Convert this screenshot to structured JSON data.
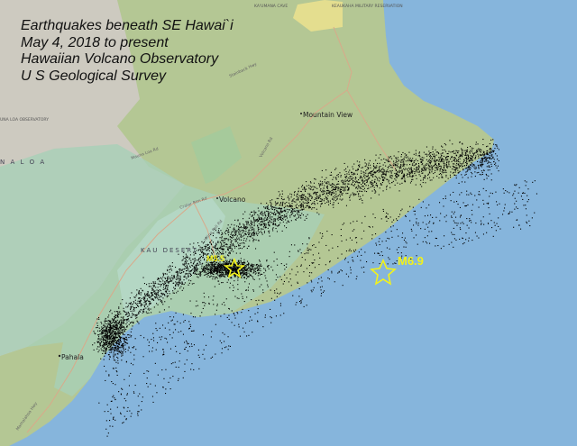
{
  "title_lines": [
    "Earthquakes beneath SE Hawai`i",
    "May 4, 2018 to present",
    "Hawaiian Volcano Observatory",
    "U S Geological Survey"
  ],
  "places": {
    "mountain_view": "Mountain View",
    "volcano": "Volcano",
    "pahala": "Pahala",
    "kau_desert": "KAU DESERT",
    "mauna_loa": "N A  L O A",
    "mauna_loa_observatory": "UNA LOA OBSERVATORY",
    "kaumana_cave": "KA'UMANA CAVE",
    "keaukaha": "KEAUKAHA MILITARY RESERVATION"
  },
  "roads": {
    "stainback": "Stainback Hwy",
    "volcano_rd": "Volcano Rd",
    "mauna_loa_rd": "Mauna Loa Rd",
    "crater_rim": "Crater Rim Rd",
    "hilina_pali": "Hilina Pali Rd",
    "kamehameha": "Mamalahoa Hwy"
  },
  "events": [
    {
      "label": "M5.5",
      "marker": "star-icon"
    },
    {
      "label": "M6.9",
      "marker": "star-icon"
    }
  ],
  "colors": {
    "ocean": "#86b5dc",
    "land": "#b6c896",
    "park": "#a9cfb4",
    "highland": "#c9c6c0",
    "quake": "#000000",
    "star": "#f2f21a"
  }
}
